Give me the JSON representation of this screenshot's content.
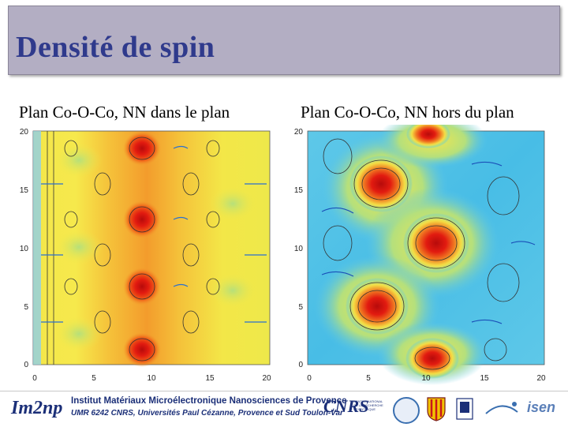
{
  "title": "Densité de spin",
  "captions": {
    "left": "Plan Co-O-Co, NN dans le plan",
    "right": "Plan Co-O-Co, NN hors du plan"
  },
  "axis_ticks": {
    "y": [
      "20",
      "15",
      "10",
      "5",
      "0"
    ],
    "x": [
      "0",
      "5",
      "10",
      "15",
      "20"
    ]
  },
  "footer": {
    "lab_logo": "Im2np",
    "institute": "Institut Matériaux Microélectronique Nanosciences de Provence",
    "institute_sub": "UMR 6242 CNRS, Universités Paul Cézanne, Provence et Sud Toulon-Var",
    "cnrs": "CNRS",
    "cnrs_small": "CENTRE NATIONAL DE LA RECHERCHE SCIENTIFIQUE",
    "isen": "isen"
  },
  "colors": {
    "title_bg": "#b3aec3",
    "title_text": "#2f3a8c",
    "map_hot": "#e21b10",
    "map_cold": "#2aa8e6"
  }
}
